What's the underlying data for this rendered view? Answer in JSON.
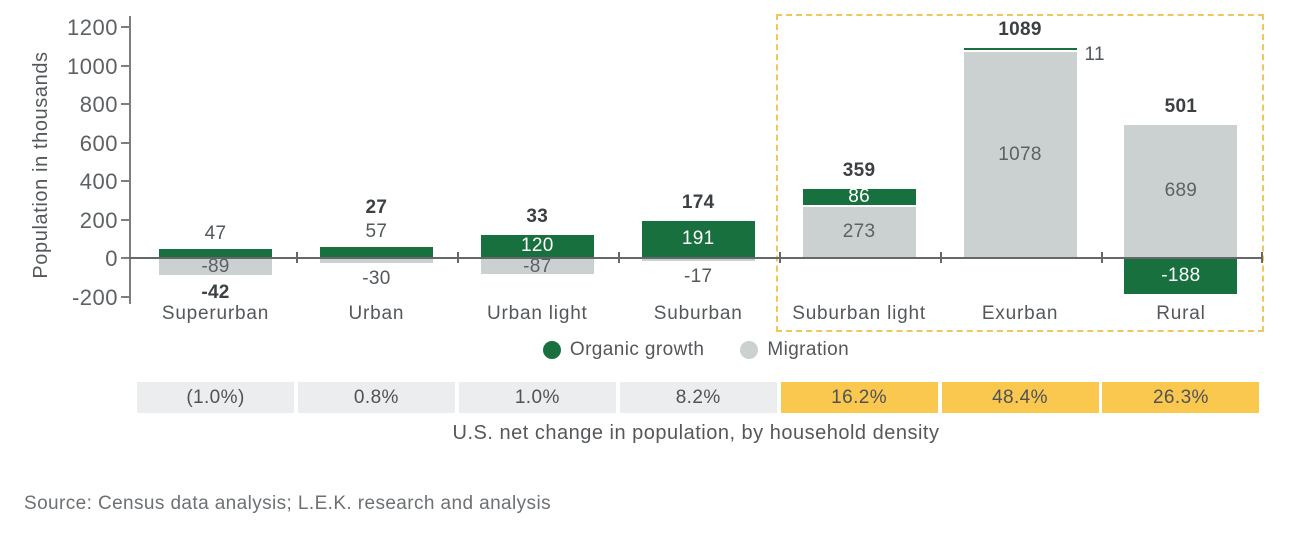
{
  "chart_data": {
    "type": "bar",
    "stacked": true,
    "title": "",
    "ylabel": "Population in thousands",
    "caption": "U.S. net change in population, by household density",
    "ylim": [
      -200,
      1200
    ],
    "yticks": [
      1200,
      1000,
      800,
      600,
      400,
      200,
      0,
      -200
    ],
    "grid": false,
    "legend_position": "bottom-center",
    "categories": [
      "Superurban",
      "Urban",
      "Urban light",
      "Suburban",
      "Suburban light",
      "Exurban",
      "Rural"
    ],
    "series": [
      {
        "name": "Organic growth",
        "color": "#18703e",
        "values": [
          47,
          57,
          120,
          191,
          86,
          11,
          -188
        ]
      },
      {
        "name": "Migration",
        "color": "#cbd1d0",
        "values": [
          -89,
          -30,
          -87,
          -17,
          273,
          1078,
          689
        ]
      }
    ],
    "totals": [
      -42,
      27,
      33,
      174,
      359,
      1089,
      501
    ],
    "legend": [
      {
        "label": "Organic growth",
        "color": "#18703e"
      },
      {
        "label": "Migration",
        "color": "#cbd1d0"
      }
    ],
    "label_layout": {
      "organic": [
        "above",
        "above",
        "inside",
        "inside",
        "inside",
        "right",
        "inside"
      ],
      "migration": [
        "inside",
        "below",
        "inside",
        "below",
        "inside",
        "inside",
        "inside"
      ],
      "total": [
        "below",
        "above",
        "above",
        "above",
        "above",
        "above",
        "above"
      ]
    },
    "highlighted_categories": [
      "Suburban light",
      "Exurban",
      "Rural"
    ],
    "percent_row": {
      "values": [
        "(1.0%)",
        "0.8%",
        "1.0%",
        "8.2%",
        "16.2%",
        "48.4%",
        "26.3%"
      ],
      "highlighted": [
        false,
        false,
        false,
        false,
        true,
        true,
        true
      ]
    }
  },
  "colors": {
    "organic_growth": "#18703e",
    "migration": "#cbd1d0",
    "highlight_cell": "#fac74f",
    "muted_cell": "#ebedee",
    "highlight_border": "#eec85e",
    "text": "#54585b",
    "text_strong": "#3b4043",
    "bar_label_light": "#ffffff",
    "bar_label_dark": "#5d6164",
    "axis": "#7b7f82"
  },
  "source": "Source: Census data analysis; L.E.K. research and analysis"
}
